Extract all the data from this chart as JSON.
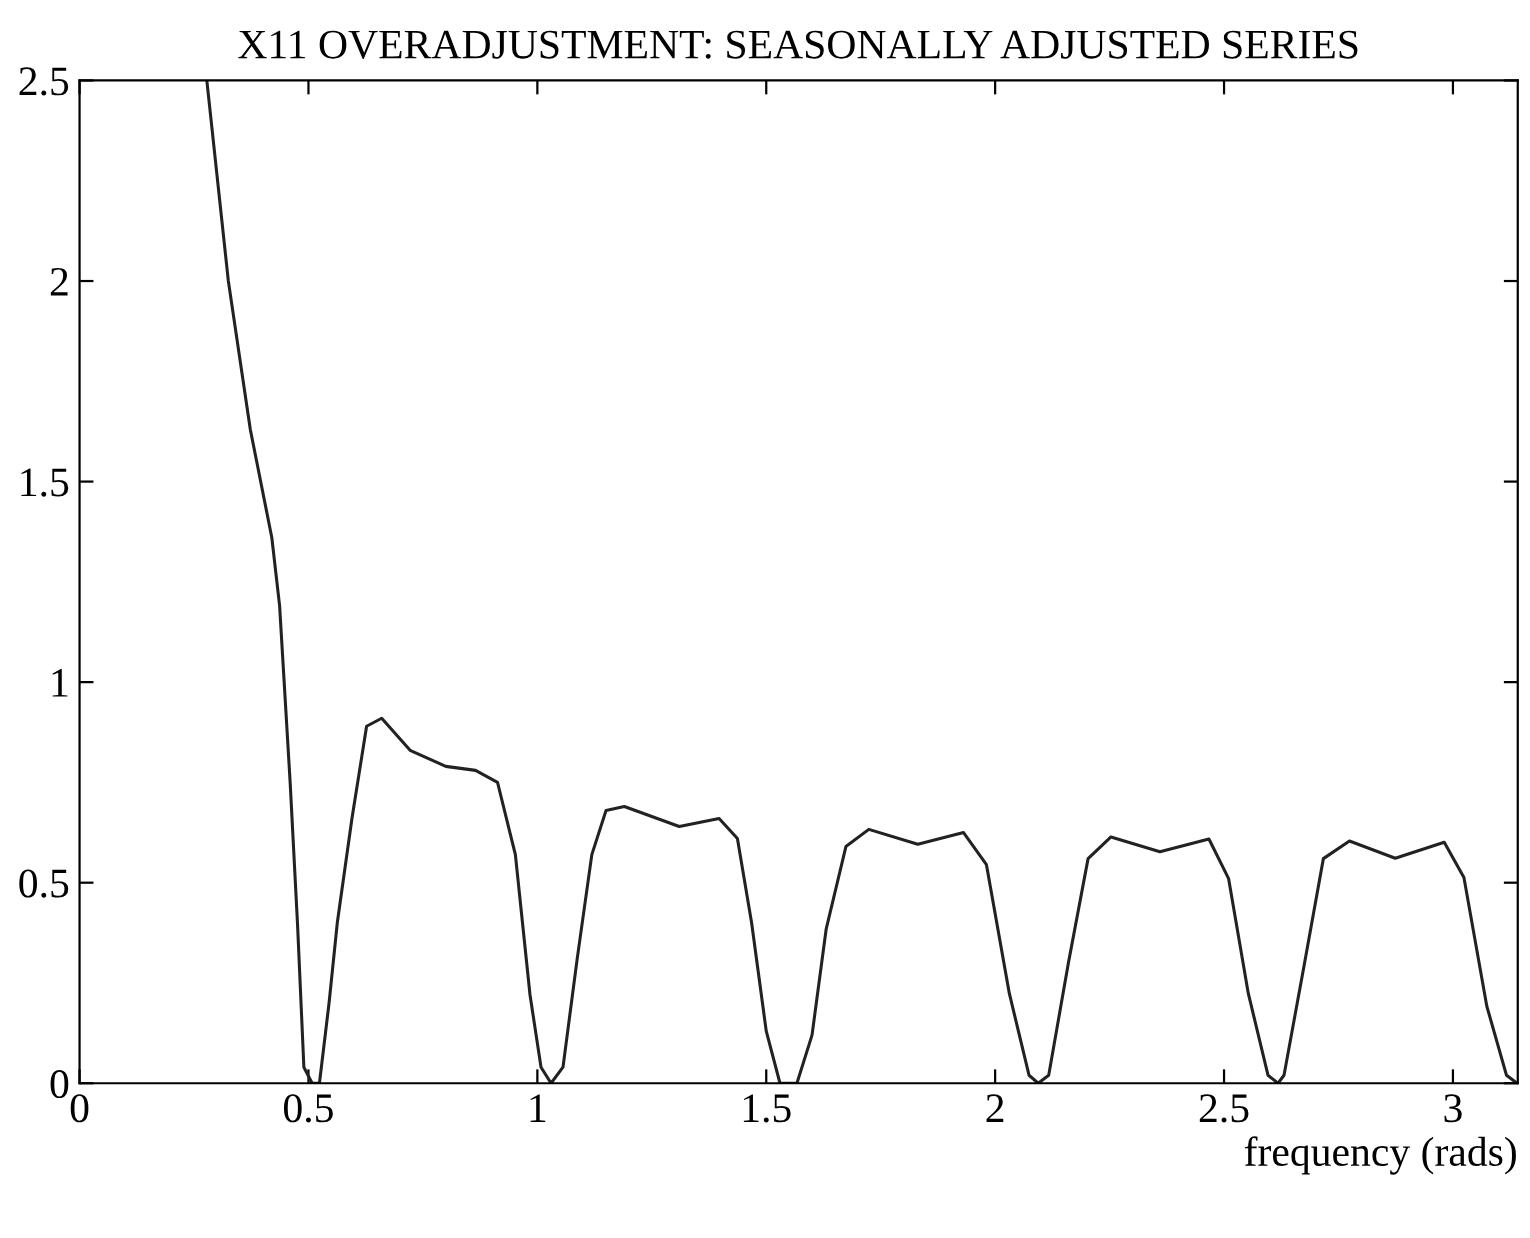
{
  "chart_data": {
    "type": "line",
    "title": "X11 OVERADJUSTMENT: SEASONALLY ADJUSTED SERIES",
    "xlabel": "frequency (rads)",
    "xlim": [
      0,
      3.1416
    ],
    "ylim": [
      0,
      2.5
    ],
    "xticks": [
      0,
      0.5,
      1,
      1.5,
      2,
      2.5,
      3
    ],
    "yticks": [
      0,
      0.5,
      1,
      1.5,
      2,
      2.5
    ],
    "grid": false,
    "line_style": "solid",
    "marker": "none",
    "series": [
      {
        "color": "#222222",
        "x": [
          0.278,
          0.325,
          0.373,
          0.42,
          0.437,
          0.46,
          0.476,
          0.49,
          0.508,
          0.524,
          0.545,
          0.563,
          0.595,
          0.627,
          0.66,
          0.722,
          0.8,
          0.865,
          0.913,
          0.952,
          0.984,
          1.008,
          1.03,
          1.056,
          1.087,
          1.119,
          1.15,
          1.19,
          1.31,
          1.397,
          1.437,
          1.468,
          1.5,
          1.53,
          1.567,
          1.6,
          1.631,
          1.674,
          1.724,
          1.831,
          1.931,
          1.981,
          2.031,
          2.074,
          2.094,
          2.117,
          2.16,
          2.203,
          2.253,
          2.36,
          2.467,
          2.51,
          2.553,
          2.596,
          2.618,
          2.631,
          2.674,
          2.717,
          2.774,
          2.874,
          2.981,
          3.024,
          3.074,
          3.117,
          3.14
        ],
        "values": [
          2.5,
          2.0,
          1.63,
          1.36,
          1.19,
          0.75,
          0.4,
          0.04,
          0,
          0,
          0.2,
          0.4,
          0.66,
          0.89,
          0.91,
          0.83,
          0.79,
          0.78,
          0.75,
          0.57,
          0.22,
          0.04,
          0,
          0.04,
          0.31,
          0.57,
          0.68,
          0.69,
          0.64,
          0.66,
          0.61,
          0.4,
          0.13,
          0,
          0,
          0.12,
          0.385,
          0.59,
          0.633,
          0.596,
          0.625,
          0.545,
          0.224,
          0.02,
          0,
          0.02,
          0.3,
          0.56,
          0.614,
          0.577,
          0.609,
          0.51,
          0.224,
          0.02,
          0,
          0.02,
          0.288,
          0.56,
          0.604,
          0.561,
          0.601,
          0.513,
          0.192,
          0.02,
          0
        ]
      }
    ]
  }
}
